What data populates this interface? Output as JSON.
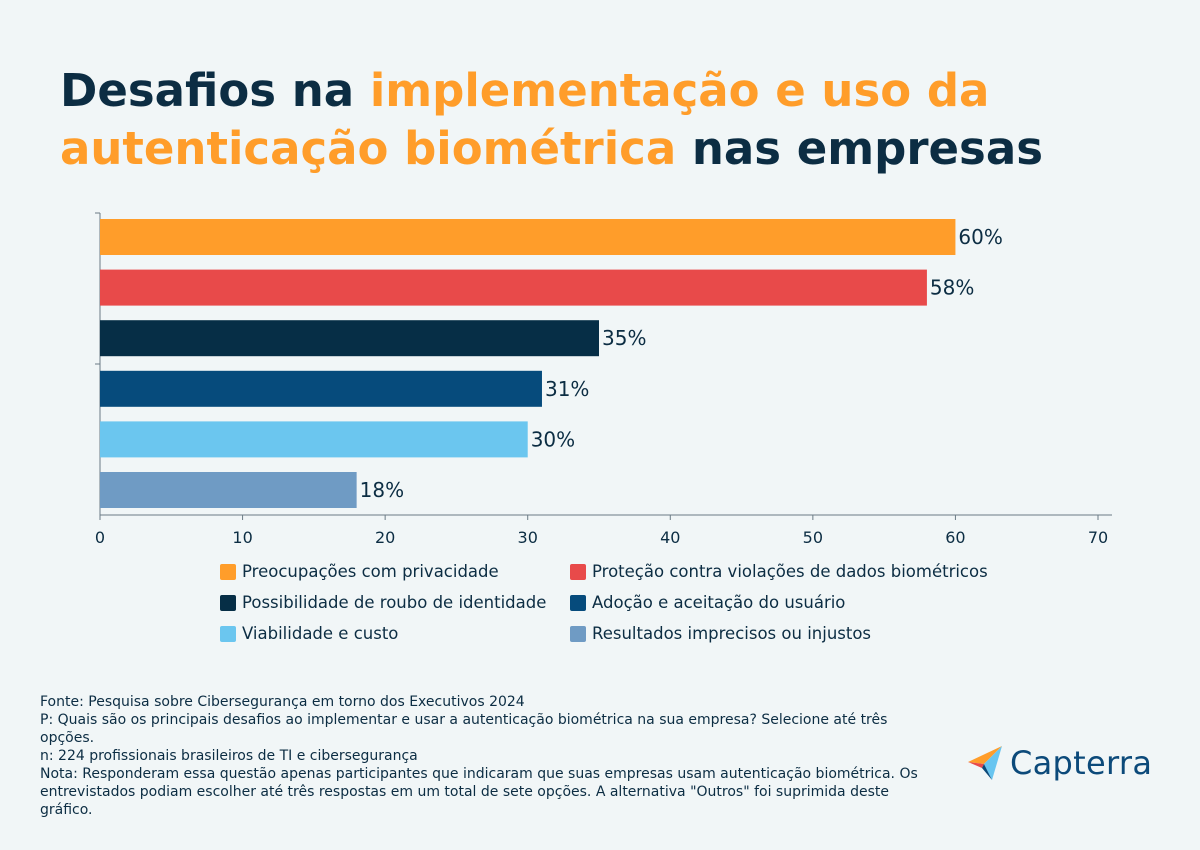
{
  "title": {
    "part1": "Desafios na ",
    "part2": "implementação e uso da autenticação biométrica",
    "part3": " nas empresas"
  },
  "colors": {
    "accent_orange": "#ff9d2a",
    "navy": "#0c2d43"
  },
  "chart_data": {
    "type": "bar",
    "orientation": "horizontal",
    "categories": [
      "Preocupações com privacidade",
      "Proteção contra violações de dados biométricos",
      "Possibilidade de roubo de identidade",
      "Adoção e aceitação do usuário",
      "Viabilidade e custo",
      "Resultados imprecisos ou injustos"
    ],
    "values": [
      60,
      58,
      35,
      31,
      30,
      18
    ],
    "value_labels": [
      "60%",
      "58%",
      "35%",
      "31%",
      "30%",
      "18%"
    ],
    "colors": [
      "#ff9d2a",
      "#e84a4a",
      "#062e46",
      "#064b7c",
      "#6bc6ef",
      "#6f9bc4"
    ],
    "xlim": [
      0,
      70
    ],
    "xticks": [
      "0",
      "10",
      "20",
      "30",
      "40",
      "50",
      "60",
      "70"
    ],
    "grid": false,
    "legend_position": "bottom"
  },
  "legend": [
    {
      "label": "Preocupações com privacidade",
      "color": "#ff9d2a"
    },
    {
      "label": "Proteção contra violações de dados biométricos",
      "color": "#e84a4a"
    },
    {
      "label": "Possibilidade de roubo de identidade",
      "color": "#062e46"
    },
    {
      "label": "Adoção e aceitação do usuário",
      "color": "#064b7c"
    },
    {
      "label": "Viabilidade e custo",
      "color": "#6bc6ef"
    },
    {
      "label": "Resultados imprecisos ou injustos",
      "color": "#6f9bc4"
    }
  ],
  "notes": {
    "source": "Fonte: Pesquisa sobre Cibersegurança em torno dos Executivos 2024",
    "question": "P: Quais são os principais desafios ao implementar e usar a autenticação biométrica na sua empresa? Selecione até três opções.",
    "sample": "n: 224 profissionais brasileiros de TI e cibersegurança",
    "note": "Nota: Responderam essa questão apenas participantes que indicaram que suas empresas usam autenticação biométrica. Os entrevistados podiam escolher até três respostas em um total de sete opções. A alternativa \"Outros\" foi suprimida deste gráfico."
  },
  "brand": {
    "name": "Capterra",
    "icon": "capterra-logo-icon"
  }
}
